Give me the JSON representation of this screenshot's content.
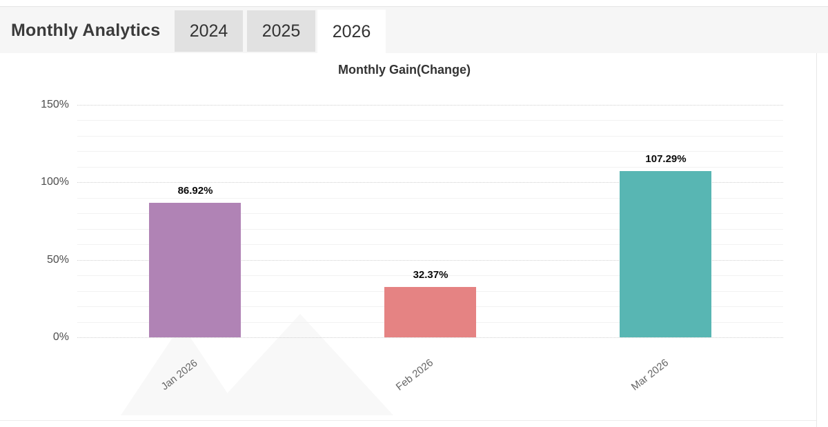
{
  "header": {
    "title": "Monthly Analytics",
    "tabs": [
      {
        "label": "2024",
        "active": false
      },
      {
        "label": "2025",
        "active": false
      },
      {
        "label": "2026",
        "active": true
      }
    ]
  },
  "chart_data": {
    "type": "bar",
    "title": "Monthly Gain(Change)",
    "categories": [
      "Jan 2026",
      "Feb 2026",
      "Mar 2026"
    ],
    "values": [
      86.92,
      32.37,
      107.29
    ],
    "value_labels": [
      "86.92%",
      "32.37%",
      "107.29%"
    ],
    "bar_colors": [
      "#b083b5",
      "#e58383",
      "#58b6b3"
    ],
    "ylabel": "",
    "xlabel": "",
    "ylim": [
      0,
      150
    ],
    "y_ticks": [
      {
        "value": 0,
        "label": "0%"
      },
      {
        "value": 50,
        "label": "50%"
      },
      {
        "value": 100,
        "label": "100%"
      },
      {
        "value": 150,
        "label": "150%"
      }
    ],
    "minor_tick_step": 10,
    "grid": "on",
    "legend": "none"
  }
}
